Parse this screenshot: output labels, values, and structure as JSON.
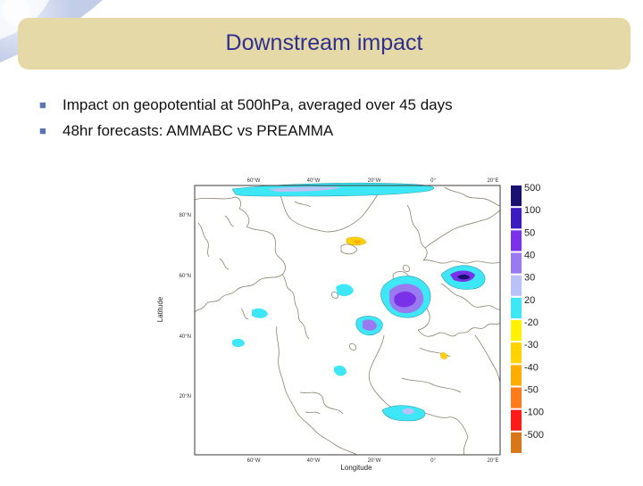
{
  "slide": {
    "title": "Downstream impact",
    "bullets": [
      "Impact on geopotential at 500hPa, averaged over 45 days",
      "48hr forecasts: AMMABC vs PREAMMA"
    ]
  },
  "map": {
    "top_lon_labels": [
      "60°W",
      "40°W",
      "20°W",
      "0°",
      "20°E"
    ],
    "bottom_lon_labels": [
      "60°W",
      "40°W",
      "20°W",
      "0°",
      "20°E"
    ],
    "lat_labels": [
      "80°N",
      "60°N",
      "40°N",
      "20°N"
    ],
    "xlabel": "Longitude",
    "ylabel": "Latitude",
    "legend": [
      {
        "label": "500",
        "color": "#1a1070"
      },
      {
        "label": "100",
        "color": "#3a1cc0"
      },
      {
        "label": "50",
        "color": "#7a32e8"
      },
      {
        "label": "40",
        "color": "#9a7af0"
      },
      {
        "label": "30",
        "color": "#b9c2f6"
      },
      {
        "label": "20",
        "color": "#3ee7f5"
      },
      {
        "label": "-20",
        "color": "#fff200"
      },
      {
        "label": "-30",
        "color": "#ffd200"
      },
      {
        "label": "-40",
        "color": "#ffae00"
      },
      {
        "label": "-50",
        "color": "#ff7a1a"
      },
      {
        "label": "-100",
        "color": "#ff1a1a"
      },
      {
        "label": "-500",
        "color": "#d8761a"
      }
    ],
    "colors": {
      "land_outline": "#8a8372",
      "frame": "#3a3a3a"
    }
  }
}
